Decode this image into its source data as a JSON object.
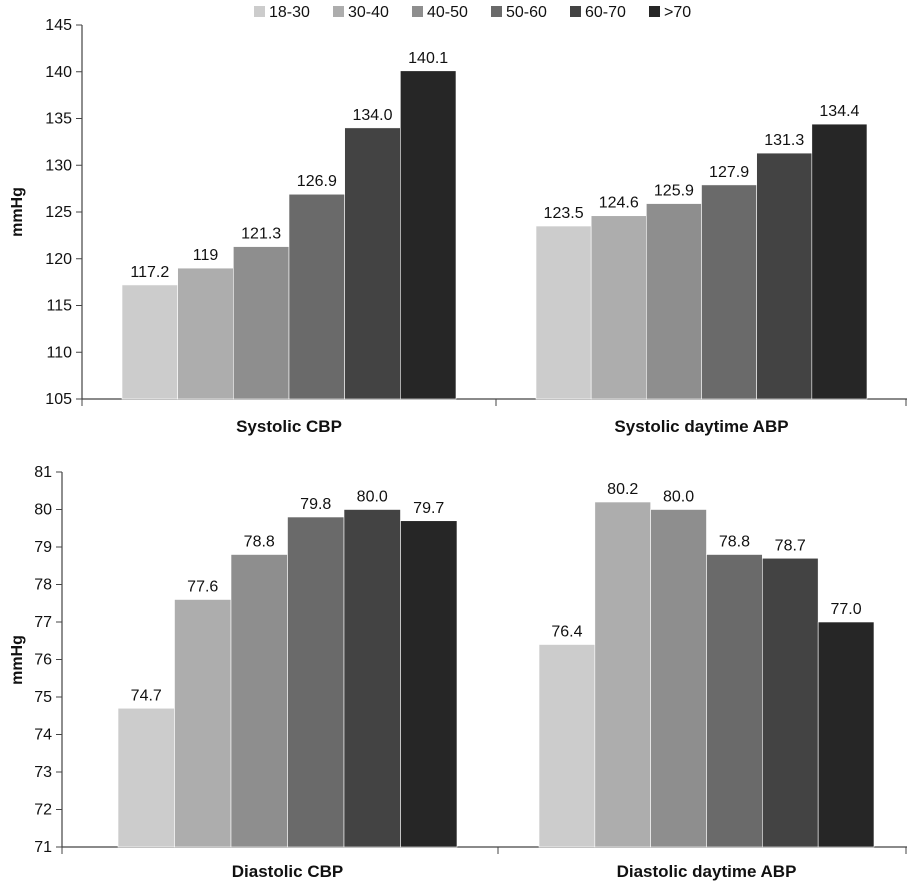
{
  "legend": [
    "18-30",
    "30-40",
    "40-50",
    "50-60",
    "60-70",
    ">70"
  ],
  "colors": [
    "#cccccc",
    "#adadad",
    "#8e8e8e",
    "#6a6a6a",
    "#434343",
    "#262626"
  ],
  "chart_data": [
    {
      "type": "bar",
      "ylabel": "mmHg",
      "ylim": [
        105,
        145
      ],
      "yticks": [
        105,
        110,
        115,
        120,
        125,
        130,
        135,
        140,
        145
      ],
      "categories": [
        "Systolic CBP",
        "Systolic daytime ABP"
      ],
      "series": [
        {
          "name": "18-30",
          "values": [
            117.2,
            123.5
          ],
          "labels": [
            "117.2",
            "123.5"
          ]
        },
        {
          "name": "30-40",
          "values": [
            119,
            124.6
          ],
          "labels": [
            "119",
            "124.6"
          ]
        },
        {
          "name": "40-50",
          "values": [
            121.3,
            125.9
          ],
          "labels": [
            "121.3",
            "125.9"
          ]
        },
        {
          "name": "50-60",
          "values": [
            126.9,
            127.9
          ],
          "labels": [
            "126.9",
            "127.9"
          ]
        },
        {
          "name": "60-70",
          "values": [
            134.0,
            131.3
          ],
          "labels": [
            "134.0",
            "131.3"
          ]
        },
        {
          "name": ">70",
          "values": [
            140.1,
            134.4
          ],
          "labels": [
            "140.1",
            "134.4"
          ]
        }
      ],
      "grid": false,
      "legend_position": "top"
    },
    {
      "type": "bar",
      "ylabel": "mmHg",
      "ylim": [
        71,
        81
      ],
      "yticks": [
        71,
        72,
        73,
        74,
        75,
        76,
        77,
        78,
        79,
        80,
        81
      ],
      "categories": [
        "Diastolic CBP",
        "Diastolic daytime ABP"
      ],
      "series": [
        {
          "name": "18-30",
          "values": [
            74.7,
            76.4
          ],
          "labels": [
            "74.7",
            "76.4"
          ]
        },
        {
          "name": "30-40",
          "values": [
            77.6,
            80.2
          ],
          "labels": [
            "77.6",
            "80.2"
          ]
        },
        {
          "name": "40-50",
          "values": [
            78.8,
            80.0
          ],
          "labels": [
            "78.8",
            "80.0"
          ]
        },
        {
          "name": "50-60",
          "values": [
            79.8,
            78.8
          ],
          "labels": [
            "79.8",
            "78.8"
          ]
        },
        {
          "name": "60-70",
          "values": [
            80.0,
            78.7
          ],
          "labels": [
            "80.0",
            "78.7"
          ]
        },
        {
          "name": ">70",
          "values": [
            79.7,
            77.0
          ],
          "labels": [
            "79.7",
            "77.0"
          ]
        }
      ],
      "grid": false
    }
  ]
}
